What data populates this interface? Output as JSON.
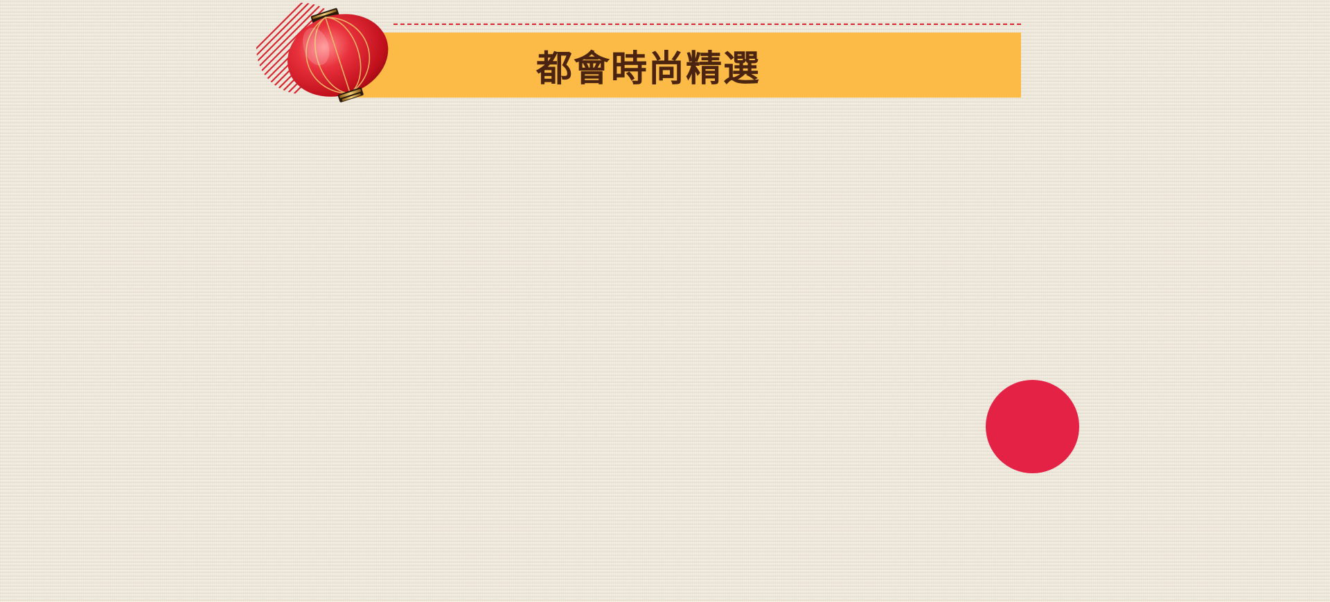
{
  "section": {
    "title": "都會時尚精選"
  },
  "colors": {
    "banner": "#fbbb46",
    "title_text": "#4a2410",
    "accent_red": "#e42245",
    "dashed_line": "#d9232e",
    "background": "#efe9dc"
  },
  "icons": {
    "lantern": "red-lantern-icon",
    "stripes": "striped-circle-decoration",
    "dot": "red-dot-decoration"
  }
}
